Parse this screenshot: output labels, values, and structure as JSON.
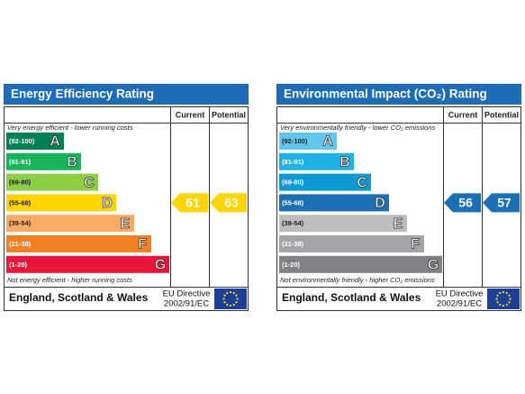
{
  "panels": [
    {
      "title": "Energy Efficiency Rating",
      "header": {
        "current": "Current",
        "potential": "Potential"
      },
      "top_note": "Very energy efficient - lower running costs",
      "bottom_note": "Not energy efficient - higher running costs",
      "bands": [
        {
          "range": "(92-100)",
          "letter": "A"
        },
        {
          "range": "(81-91)",
          "letter": "B"
        },
        {
          "range": "(69-80)",
          "letter": "C"
        },
        {
          "range": "(55-68)",
          "letter": "D"
        },
        {
          "range": "(39-54)",
          "letter": "E"
        },
        {
          "range": "(21-38)",
          "letter": "F"
        },
        {
          "range": "(1-20)",
          "letter": "G"
        }
      ],
      "current": 61,
      "potential": 63,
      "footer": {
        "region": "England, Scotland & Wales",
        "directive": "EU Directive",
        "code": "2002/91/EC"
      }
    },
    {
      "title": "Environmental Impact (CO₂) Rating",
      "header": {
        "current": "Current",
        "potential": "Potential"
      },
      "top_note": "Very environmentally friendly - lower CO₂ emissions",
      "bottom_note": "Not environmentally friendly - higher CO₂ emissions",
      "bands": [
        {
          "range": "(92-100)",
          "letter": "A"
        },
        {
          "range": "(81-91)",
          "letter": "B"
        },
        {
          "range": "(69-80)",
          "letter": "C"
        },
        {
          "range": "(55-68)",
          "letter": "D"
        },
        {
          "range": "(39-54)",
          "letter": "E"
        },
        {
          "range": "(21-38)",
          "letter": "F"
        },
        {
          "range": "(1-20)",
          "letter": "G"
        }
      ],
      "current": 56,
      "potential": 57,
      "footer": {
        "region": "England, Scotland & Wales",
        "directive": "EU Directive",
        "code": "2002/91/EC"
      }
    }
  ]
}
